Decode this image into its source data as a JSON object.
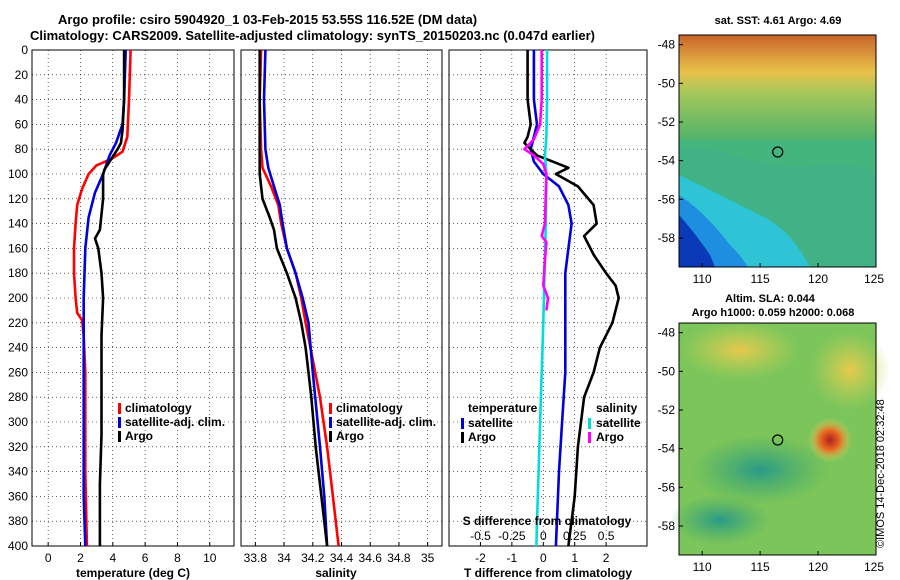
{
  "header": {
    "line1": "Argo profile: csiro 5904920_1 03-Feb-2015 53.55S 116.52E (DM data)",
    "line2": "Climatology: CARS2009. Satellite-adjusted climatology: synTS_20150203.nc (0.047d earlier)"
  },
  "watermark": "©IMOS 14-Dec-2018 02:32:48",
  "colors": {
    "climatology": "#ff0000",
    "satellite": "#0000dd",
    "argo": "#000000",
    "sat_salinity": "#00dddd",
    "argo_salinity": "#ff00ff"
  },
  "chart_data": [
    {
      "id": "temperature",
      "type": "line",
      "xlabel": "temperature (deg C)",
      "ylabel": "depth",
      "xlim": [
        -1,
        11.5
      ],
      "ylim": [
        400,
        0
      ],
      "xticks": [
        0,
        2,
        4,
        6,
        8,
        10
      ],
      "yticks": [
        0,
        20,
        40,
        60,
        80,
        100,
        120,
        140,
        160,
        180,
        200,
        220,
        240,
        260,
        280,
        300,
        320,
        340,
        360,
        380,
        400
      ],
      "grid": true,
      "legend": [
        "climatology",
        "satellite-adj. clim.",
        "Argo"
      ],
      "series": [
        {
          "name": "climatology",
          "color": "#ff0000",
          "points": [
            [
              5.1,
              0
            ],
            [
              5.0,
              40
            ],
            [
              4.9,
              70
            ],
            [
              4.6,
              82
            ],
            [
              3.9,
              88
            ],
            [
              3.0,
              93
            ],
            [
              2.5,
              100
            ],
            [
              2.1,
              112
            ],
            [
              1.8,
              125
            ],
            [
              1.7,
              140
            ],
            [
              1.6,
              160
            ],
            [
              1.6,
              180
            ],
            [
              1.7,
              200
            ],
            [
              1.8,
              212
            ],
            [
              2.1,
              218
            ],
            [
              2.2,
              230
            ],
            [
              2.3,
              260
            ],
            [
              2.3,
              300
            ],
            [
              2.3,
              340
            ],
            [
              2.4,
              400
            ]
          ]
        },
        {
          "name": "satellite-adj. clim.",
          "color": "#0000dd",
          "points": [
            [
              4.8,
              0
            ],
            [
              4.7,
              40
            ],
            [
              4.6,
              60
            ],
            [
              4.2,
              75
            ],
            [
              3.8,
              85
            ],
            [
              3.4,
              100
            ],
            [
              2.9,
              115
            ],
            [
              2.5,
              135
            ],
            [
              2.3,
              160
            ],
            [
              2.2,
              200
            ],
            [
              2.2,
              240
            ],
            [
              2.2,
              300
            ],
            [
              2.2,
              360
            ],
            [
              2.3,
              400
            ]
          ]
        },
        {
          "name": "Argo",
          "color": "#000000",
          "points": [
            [
              4.7,
              0
            ],
            [
              4.7,
              40
            ],
            [
              4.6,
              65
            ],
            [
              4.5,
              75
            ],
            [
              4.3,
              80
            ],
            [
              4.0,
              86
            ],
            [
              3.7,
              92
            ],
            [
              3.5,
              96
            ],
            [
              3.4,
              100
            ],
            [
              3.4,
              120
            ],
            [
              3.2,
              145
            ],
            [
              2.9,
              152
            ],
            [
              3.1,
              160
            ],
            [
              3.3,
              180
            ],
            [
              3.4,
              200
            ],
            [
              3.3,
              230
            ],
            [
              3.3,
              270
            ],
            [
              3.3,
              310
            ],
            [
              3.2,
              350
            ],
            [
              3.2,
              400
            ]
          ]
        }
      ]
    },
    {
      "id": "salinity",
      "type": "line",
      "xlabel": "salinity",
      "xlim": [
        33.7,
        35.1
      ],
      "ylim": [
        400,
        0
      ],
      "xticks": [
        33.8,
        34,
        34.2,
        34.4,
        34.6,
        34.8,
        35
      ],
      "grid": true,
      "legend": [
        "climatology",
        "satellite-adj. clim.",
        "Argo"
      ],
      "series": [
        {
          "name": "climatology",
          "color": "#ff0000",
          "points": [
            [
              33.84,
              0
            ],
            [
              33.83,
              40
            ],
            [
              33.84,
              80
            ],
            [
              33.85,
              95
            ],
            [
              33.91,
              110
            ],
            [
              33.96,
              125
            ],
            [
              33.98,
              140
            ],
            [
              34.02,
              160
            ],
            [
              34.08,
              180
            ],
            [
              34.12,
              200
            ],
            [
              34.15,
              220
            ],
            [
              34.2,
              250
            ],
            [
              34.25,
              280
            ],
            [
              34.3,
              320
            ],
            [
              34.34,
              360
            ],
            [
              34.38,
              400
            ]
          ]
        },
        {
          "name": "satellite-adj. clim.",
          "color": "#0000dd",
          "points": [
            [
              33.87,
              0
            ],
            [
              33.86,
              40
            ],
            [
              33.87,
              80
            ],
            [
              33.89,
              95
            ],
            [
              33.93,
              110
            ],
            [
              33.97,
              125
            ],
            [
              33.99,
              140
            ],
            [
              34.02,
              160
            ],
            [
              34.08,
              180
            ],
            [
              34.13,
              200
            ],
            [
              34.17,
              220
            ],
            [
              34.2,
              260
            ],
            [
              34.25,
              320
            ],
            [
              34.28,
              360
            ],
            [
              34.3,
              400
            ]
          ]
        },
        {
          "name": "Argo",
          "color": "#000000",
          "points": [
            [
              33.83,
              0
            ],
            [
              33.83,
              40
            ],
            [
              33.83,
              100
            ],
            [
              33.85,
              120
            ],
            [
              33.9,
              135
            ],
            [
              33.93,
              145
            ],
            [
              33.95,
              160
            ],
            [
              34.02,
              180
            ],
            [
              34.08,
              200
            ],
            [
              34.12,
              220
            ],
            [
              34.15,
              240
            ],
            [
              34.17,
              260
            ],
            [
              34.19,
              280
            ],
            [
              34.22,
              320
            ],
            [
              34.26,
              360
            ],
            [
              34.3,
              400
            ]
          ]
        }
      ]
    },
    {
      "id": "difference",
      "type": "line",
      "xlabel": "T difference from climatology",
      "x2label": "S difference from climatology",
      "xlim": [
        -3.0,
        3.3
      ],
      "ylim": [
        400,
        0
      ],
      "xticks": [
        -2,
        -1,
        0,
        1,
        2
      ],
      "xticks_labels": [
        "-2",
        "-1",
        "0",
        "1",
        "2"
      ],
      "x2ticks": [
        -2.0,
        -1.0,
        0,
        1.0,
        2.0
      ],
      "x2ticks_labels": [
        "-0.5",
        "-0.25",
        "0",
        "0.25",
        "0.5"
      ],
      "grid": true,
      "legend_groups": {
        "temperature_title": "temperature",
        "salinity_title": "salinity",
        "temperature": [
          "satellite",
          "Argo"
        ],
        "salinity": [
          "satellite",
          "Argo"
        ]
      },
      "series": [
        {
          "name": "temperature satellite",
          "color": "#0000dd",
          "points": [
            [
              -0.3,
              0
            ],
            [
              -0.3,
              40
            ],
            [
              -0.2,
              60
            ],
            [
              -0.3,
              70
            ],
            [
              -0.4,
              80
            ],
            [
              -0.3,
              90
            ],
            [
              0.0,
              100
            ],
            [
              0.5,
              110
            ],
            [
              0.8,
              125
            ],
            [
              0.9,
              140
            ],
            [
              0.8,
              160
            ],
            [
              0.7,
              180
            ],
            [
              0.7,
              220
            ],
            [
              0.7,
              260
            ],
            [
              0.6,
              300
            ],
            [
              0.5,
              340
            ],
            [
              0.4,
              400
            ]
          ]
        },
        {
          "name": "temperature Argo",
          "color": "#000000",
          "points": [
            [
              -0.5,
              0
            ],
            [
              -0.5,
              40
            ],
            [
              -0.4,
              60
            ],
            [
              -0.5,
              70
            ],
            [
              -0.6,
              75
            ],
            [
              -0.2,
              85
            ],
            [
              0.3,
              90
            ],
            [
              0.8,
              95
            ],
            [
              0.4,
              100
            ],
            [
              1.1,
              110
            ],
            [
              1.6,
              125
            ],
            [
              1.7,
              140
            ],
            [
              1.3,
              150
            ],
            [
              1.6,
              165
            ],
            [
              2.0,
              180
            ],
            [
              2.3,
              190
            ],
            [
              2.4,
              200
            ],
            [
              2.2,
              220
            ],
            [
              1.8,
              240
            ],
            [
              1.6,
              260
            ],
            [
              1.3,
              280
            ],
            [
              1.1,
              320
            ],
            [
              1.0,
              360
            ],
            [
              0.8,
              400
            ]
          ]
        },
        {
          "name": "salinity satellite",
          "color": "#00dddd",
          "points": [
            [
              0.12,
              0
            ],
            [
              0.12,
              40
            ],
            [
              0.1,
              70
            ],
            [
              0.05,
              85
            ],
            [
              0.1,
              100
            ],
            [
              0.08,
              140
            ],
            [
              0.04,
              180
            ],
            [
              0.0,
              220
            ],
            [
              -0.05,
              260
            ],
            [
              -0.1,
              300
            ],
            [
              -0.15,
              340
            ],
            [
              -0.2,
              380
            ],
            [
              -0.22,
              400
            ]
          ]
        },
        {
          "name": "salinity Argo",
          "color": "#ff00ff",
          "points": [
            [
              -0.05,
              0
            ],
            [
              -0.05,
              40
            ],
            [
              -0.1,
              60
            ],
            [
              -0.3,
              72
            ],
            [
              -0.6,
              80
            ],
            [
              -0.3,
              85
            ],
            [
              0.0,
              92
            ],
            [
              0.1,
              100
            ],
            [
              0.05,
              140
            ],
            [
              -0.05,
              150
            ],
            [
              0.1,
              155
            ],
            [
              0.05,
              170
            ],
            [
              0.0,
              190
            ],
            [
              0.15,
              200
            ],
            [
              0.1,
              210
            ]
          ]
        }
      ]
    },
    {
      "id": "sst_map",
      "type": "heatmap",
      "title": "sat. SST: 4.61 Argo: 4.69",
      "xticks": [
        110,
        115,
        120,
        125
      ],
      "yticks": [
        -48,
        -50,
        -52,
        -54,
        -56,
        -58
      ],
      "xlim": [
        108,
        125
      ],
      "ylim": [
        -59.5,
        -47.5
      ],
      "marker": {
        "lon": 116.52,
        "lat": -53.55
      }
    },
    {
      "id": "sla_map",
      "type": "heatmap",
      "title_line1": "Altim. SLA: 0.044",
      "title_line2": "Argo h1000: 0.059 h2000: 0.068",
      "xticks": [
        110,
        115,
        120,
        125
      ],
      "yticks": [
        -48,
        -50,
        -52,
        -54,
        -56,
        -58
      ],
      "xlim": [
        108,
        125
      ],
      "ylim": [
        -59.5,
        -47.5
      ],
      "marker": {
        "lon": 116.52,
        "lat": -53.55
      }
    }
  ]
}
